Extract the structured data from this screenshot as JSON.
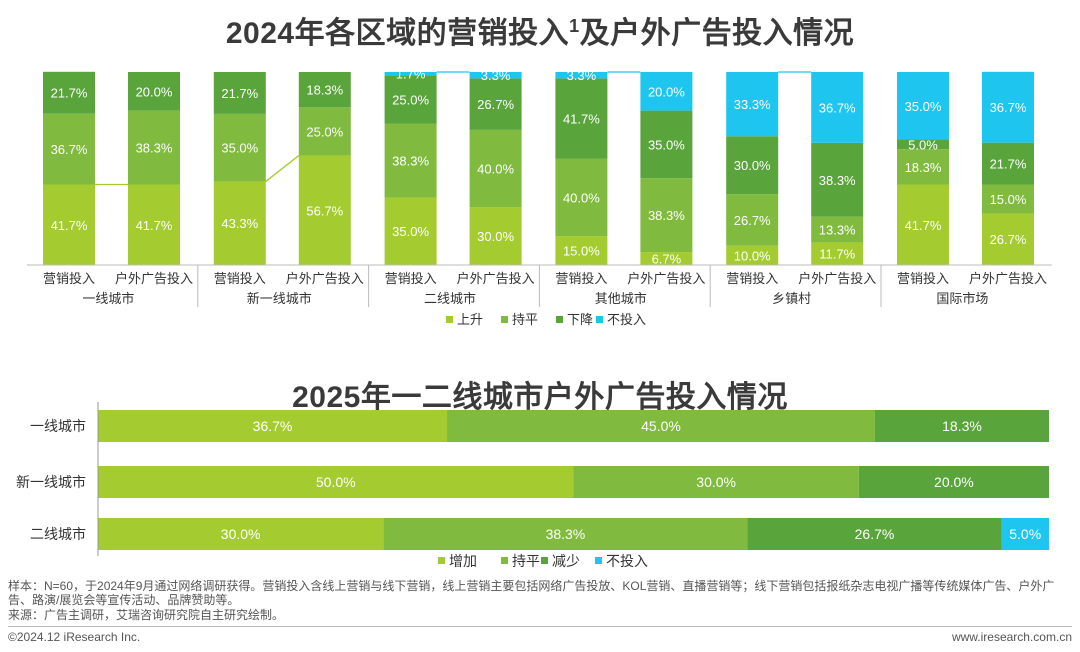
{
  "title_top": "2024年各区域的营销投入",
  "title_top_sup": "1",
  "title_top_tail": "及户外广告投入情况",
  "title_bottom": "2025年一二线城市户外广告投入情况",
  "colors": {
    "up": "#a4cc30",
    "flat": "#80bb40",
    "down": "#5aa43c",
    "none": "#1ec6ef",
    "connector": "#1ec6ef"
  },
  "chart_data": [
    {
      "type": "bar",
      "stacked": true,
      "orientation": "vertical",
      "ylim": [
        0,
        100
      ],
      "legend_position": "bottom",
      "legend": [
        "上升",
        "持平",
        "下降",
        "不投入"
      ],
      "groups": [
        {
          "name": "一线城市",
          "bars": [
            {
              "label": "营销投入",
              "values": [
                41.7,
                36.7,
                21.7,
                0
              ]
            },
            {
              "label": "户外广告投入",
              "values": [
                41.7,
                38.3,
                20.0,
                0
              ]
            }
          ]
        },
        {
          "name": "新一线城市",
          "bars": [
            {
              "label": "营销投入",
              "values": [
                43.3,
                35.0,
                21.7,
                0
              ]
            },
            {
              "label": "户外广告投入",
              "values": [
                56.7,
                25.0,
                18.3,
                0
              ]
            }
          ]
        },
        {
          "name": "二线城市",
          "bars": [
            {
              "label": "营销投入",
              "values": [
                35.0,
                38.3,
                25.0,
                1.7
              ]
            },
            {
              "label": "户外广告投入",
              "values": [
                30.0,
                40.0,
                26.7,
                3.3
              ]
            }
          ]
        },
        {
          "name": "其他城市",
          "bars": [
            {
              "label": "营销投入",
              "values": [
                15.0,
                40.0,
                41.7,
                3.3
              ]
            },
            {
              "label": "户外广告投入",
              "values": [
                6.7,
                38.3,
                35.0,
                20.0
              ]
            }
          ]
        },
        {
          "name": "乡镇村",
          "bars": [
            {
              "label": "营销投入",
              "values": [
                10.0,
                26.7,
                30.0,
                33.3
              ]
            },
            {
              "label": "户外广告投入",
              "values": [
                11.7,
                13.3,
                38.3,
                36.7
              ]
            }
          ]
        },
        {
          "name": "国际市场",
          "bars": [
            {
              "label": "营销投入",
              "values": [
                41.7,
                18.3,
                5.0,
                35.0
              ]
            },
            {
              "label": "户外广告投入",
              "values": [
                26.7,
                15.0,
                21.7,
                36.7
              ]
            }
          ]
        }
      ]
    },
    {
      "type": "bar",
      "stacked": true,
      "orientation": "horizontal",
      "xlim": [
        0,
        100
      ],
      "legend_position": "bottom",
      "legend": [
        "增加",
        "持平",
        "减少",
        "不投入"
      ],
      "categories": [
        "一线城市",
        "新一线城市",
        "二线城市"
      ],
      "rows": [
        [
          36.7,
          45.0,
          18.3,
          0
        ],
        [
          50.0,
          30.0,
          20.0,
          0
        ],
        [
          30.0,
          38.3,
          26.7,
          5.0
        ]
      ]
    }
  ],
  "footnote_sample": "样本：N=60，于2024年9月通过网络调研获得。营销投入含线上营销与线下营销，线上营销主要包括网络广告投放、KOL营销、直播营销等；线下营销包括报纸杂志电视广播等传统媒体广告、户外广告、路演/展览会等宣传活动、品牌赞助等。",
  "footnote_source": "来源：广告主调研，艾瑞咨询研究院自主研究绘制。",
  "footer_copyright": "©2024.12 iResearch Inc.",
  "footer_url": "www.iresearch.com.cn"
}
